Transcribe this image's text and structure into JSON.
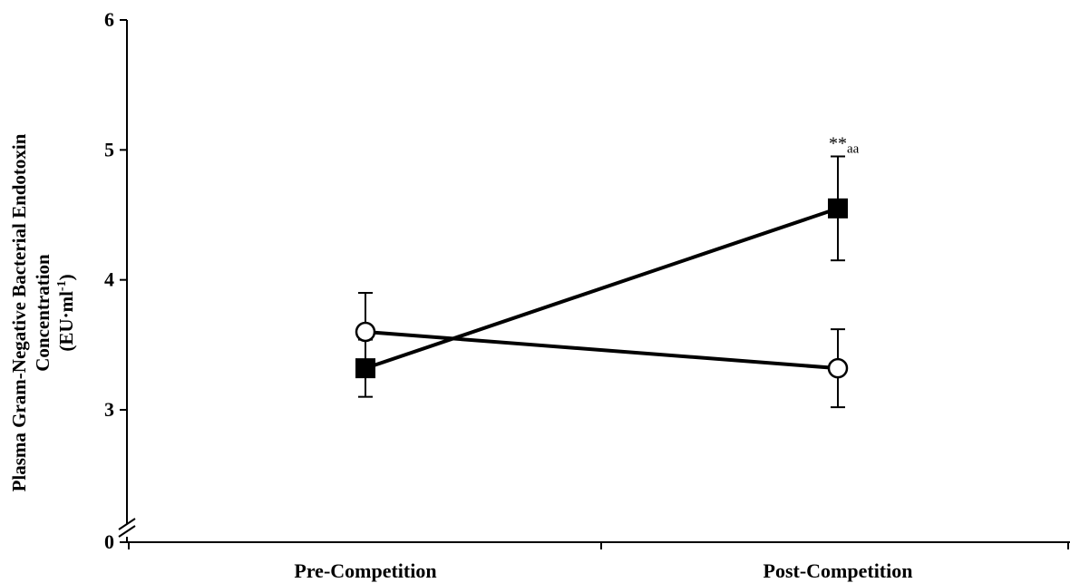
{
  "chart_data": {
    "type": "line",
    "categories": [
      "Pre-Competition",
      "Post-Competition"
    ],
    "ylabel_lines": [
      "Plasma Gram-Negative Bacterial Endotoxin",
      "Concentration",
      "(EU·ml",
      "-1",
      ")"
    ],
    "y_ticks": [
      0,
      3,
      4,
      5,
      6
    ],
    "y_tick_labels": [
      "0",
      "3",
      "4",
      "5",
      "6"
    ],
    "ylim_broken": [
      0,
      3,
      6
    ],
    "series": [
      {
        "marker": "filled-square",
        "values": [
          3.32,
          4.55
        ],
        "error": [
          0.22,
          0.4
        ]
      },
      {
        "marker": "open-circle",
        "values": [
          3.6,
          3.32
        ],
        "error": [
          0.3,
          0.3
        ]
      }
    ],
    "annotations": [
      {
        "series": 0,
        "category": 1,
        "text": "**",
        "sub": "aa"
      }
    ],
    "grid": false,
    "legend": "none"
  }
}
